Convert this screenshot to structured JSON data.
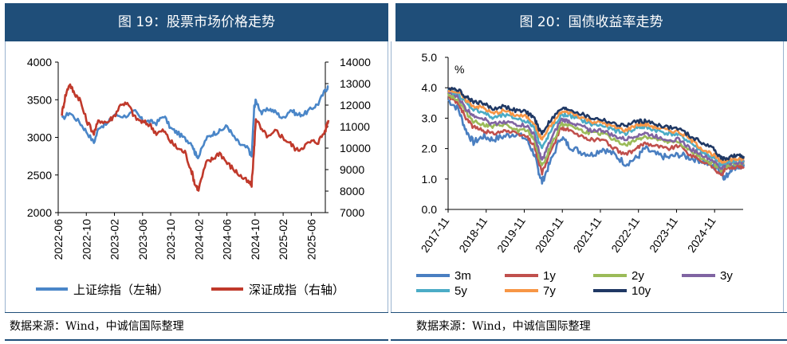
{
  "left_panel": {
    "title": "图 19：股票市场价格走势",
    "source": "数据来源：Wind，中诚信国际整理"
  },
  "right_panel": {
    "title": "图 20：国债收益率走势",
    "source": "数据来源：Wind，中诚信国际整理"
  },
  "colors": {
    "header_bg": "#1f4e79",
    "sh": "#4a86c8",
    "sz": "#c0392b",
    "3m": "#4a7fc1",
    "1y": "#c0504d",
    "2y": "#9bbb59",
    "3y": "#8064a2",
    "5y": "#4bacc6",
    "7y": "#f79646",
    "10y": "#1f3864"
  },
  "chart_data": [
    {
      "type": "line",
      "title": "图 19：股票市场价格走势",
      "x_ticks": [
        "2022-06",
        "2022-10",
        "2023-02",
        "2023-06",
        "2023-10",
        "2024-02",
        "2024-06",
        "2024-10",
        "2025-02",
        "2025-06"
      ],
      "x_range": [
        "2022-06",
        "2025-08"
      ],
      "y_left": {
        "ylim": [
          2000,
          4000
        ],
        "ticks": [
          2000,
          2500,
          3000,
          3500,
          4000
        ]
      },
      "y_right": {
        "ylim": [
          7000,
          14000
        ],
        "ticks": [
          7000,
          8000,
          9000,
          10000,
          11000,
          12000,
          13000,
          14000
        ]
      },
      "series": [
        {
          "name": "上证综指（左轴）",
          "axis": "left",
          "key": "sh",
          "x": [
            2022.46,
            2022.55,
            2022.67,
            2022.75,
            2022.84,
            2022.9,
            2023.0,
            2023.08,
            2023.2,
            2023.33,
            2023.42,
            2023.5,
            2023.58,
            2023.67,
            2023.75,
            2023.83,
            2023.92,
            2024.0,
            2024.04,
            2024.08,
            2024.17,
            2024.25,
            2024.33,
            2024.42,
            2024.5,
            2024.58,
            2024.67,
            2024.71,
            2024.74,
            2024.76,
            2024.83,
            2024.92,
            2025.0,
            2025.08,
            2025.17,
            2025.25,
            2025.33,
            2025.42,
            2025.5,
            2025.58,
            2025.62
          ],
          "values": [
            3240,
            3330,
            3200,
            3080,
            2930,
            3140,
            3180,
            3300,
            3280,
            3340,
            3220,
            3210,
            3190,
            3290,
            3120,
            3060,
            2980,
            2920,
            2790,
            2740,
            2980,
            3050,
            3080,
            3150,
            3000,
            2900,
            2850,
            2740,
            3400,
            3490,
            3320,
            3380,
            3330,
            3250,
            3370,
            3300,
            3310,
            3380,
            3450,
            3620,
            3680
          ]
        },
        {
          "name": "深证成指（右轴）",
          "axis": "right",
          "key": "sz",
          "x": [
            2022.46,
            2022.5,
            2022.55,
            2022.6,
            2022.67,
            2022.75,
            2022.84,
            2022.9,
            2023.0,
            2023.08,
            2023.17,
            2023.25,
            2023.33,
            2023.42,
            2023.5,
            2023.58,
            2023.67,
            2023.75,
            2023.83,
            2023.92,
            2024.0,
            2024.04,
            2024.08,
            2024.17,
            2024.25,
            2024.33,
            2024.42,
            2024.5,
            2024.58,
            2024.67,
            2024.71,
            2024.74,
            2024.76,
            2024.83,
            2024.92,
            2025.0,
            2025.08,
            2025.17,
            2025.25,
            2025.33,
            2025.42,
            2025.5,
            2025.58,
            2025.62
          ],
          "values": [
            11600,
            12400,
            13000,
            12600,
            12300,
            11300,
            10700,
            11300,
            11200,
            11500,
            12100,
            12000,
            11400,
            11200,
            11100,
            10700,
            10800,
            10300,
            10000,
            9800,
            8900,
            8300,
            8100,
            9300,
            9500,
            9800,
            9300,
            9000,
            8700,
            8400,
            8300,
            10000,
            11400,
            10800,
            10500,
            10800,
            10500,
            10200,
            9900,
            10100,
            10300,
            10300,
            10800,
            11300
          ]
        }
      ],
      "legend": [
        "上证综指（左轴）",
        "深证成指（右轴）"
      ]
    },
    {
      "type": "line",
      "title": "图 20：国债收益率走势",
      "ylabel": "%",
      "ylim": [
        0.0,
        5.0
      ],
      "y_ticks": [
        "0.0",
        "1.0",
        "2.0",
        "3.0",
        "4.0",
        "5.0"
      ],
      "x_ticks": [
        "2017-11",
        "2018-11",
        "2019-11",
        "2020-11",
        "2021-11",
        "2022-11",
        "2023-11",
        "2024-11"
      ],
      "x_range": [
        "2017-11",
        "2025-08"
      ],
      "x": [
        2017.83,
        2018.1,
        2018.3,
        2018.5,
        2018.75,
        2019.0,
        2019.3,
        2019.6,
        2019.9,
        2020.1,
        2020.2,
        2020.3,
        2020.5,
        2020.8,
        2021.0,
        2021.3,
        2021.6,
        2021.9,
        2022.2,
        2022.5,
        2022.8,
        2023.0,
        2023.3,
        2023.6,
        2023.9,
        2024.2,
        2024.5,
        2024.8,
        2025.0,
        2025.1,
        2025.3,
        2025.5,
        2025.6
      ],
      "series": [
        {
          "name": "3m",
          "key": "3m",
          "values": [
            3.6,
            3.3,
            2.6,
            2.2,
            2.4,
            2.3,
            2.4,
            2.5,
            2.3,
            1.8,
            1.3,
            0.9,
            1.5,
            2.4,
            2.1,
            1.9,
            1.8,
            2.0,
            1.8,
            1.5,
            1.7,
            2.0,
            1.8,
            1.7,
            1.8,
            1.7,
            1.6,
            1.4,
            1.3,
            1.0,
            1.4,
            1.4,
            1.4
          ]
        },
        {
          "name": "1y",
          "key": "1y",
          "values": [
            3.7,
            3.5,
            3.0,
            2.7,
            2.6,
            2.5,
            2.6,
            2.5,
            2.4,
            2.1,
            1.6,
            1.2,
            1.8,
            2.7,
            2.6,
            2.4,
            2.3,
            2.3,
            2.0,
            1.8,
            2.0,
            2.2,
            2.1,
            2.0,
            2.1,
            1.8,
            1.6,
            1.4,
            1.1,
            1.3,
            1.4,
            1.4,
            1.4
          ]
        },
        {
          "name": "2y",
          "key": "2y",
          "values": [
            3.8,
            3.6,
            3.2,
            2.9,
            2.8,
            2.7,
            2.8,
            2.6,
            2.6,
            2.3,
            1.8,
            1.4,
            2.0,
            2.8,
            2.8,
            2.6,
            2.5,
            2.5,
            2.3,
            2.1,
            2.3,
            2.4,
            2.3,
            2.2,
            2.2,
            1.9,
            1.7,
            1.5,
            1.3,
            1.4,
            1.5,
            1.5,
            1.5
          ]
        },
        {
          "name": "3y",
          "key": "3y",
          "values": [
            3.85,
            3.7,
            3.3,
            3.1,
            3.0,
            2.8,
            2.9,
            2.8,
            2.75,
            2.45,
            2.0,
            1.6,
            2.2,
            2.95,
            2.9,
            2.75,
            2.6,
            2.6,
            2.4,
            2.3,
            2.45,
            2.5,
            2.4,
            2.3,
            2.3,
            2.0,
            1.8,
            1.6,
            1.35,
            1.45,
            1.55,
            1.55,
            1.55
          ]
        },
        {
          "name": "5y",
          "key": "5y",
          "values": [
            3.9,
            3.8,
            3.5,
            3.3,
            3.2,
            3.0,
            3.1,
            3.0,
            2.9,
            2.7,
            2.3,
            2.0,
            2.5,
            3.1,
            3.1,
            2.95,
            2.8,
            2.75,
            2.6,
            2.5,
            2.7,
            2.7,
            2.6,
            2.5,
            2.45,
            2.2,
            1.9,
            1.7,
            1.45,
            1.55,
            1.6,
            1.6,
            1.6
          ]
        },
        {
          "name": "7y",
          "key": "7y",
          "values": [
            3.95,
            3.85,
            3.6,
            3.4,
            3.35,
            3.15,
            3.25,
            3.1,
            3.05,
            2.85,
            2.5,
            2.3,
            2.7,
            3.2,
            3.2,
            3.05,
            2.9,
            2.85,
            2.7,
            2.6,
            2.8,
            2.8,
            2.7,
            2.6,
            2.55,
            2.3,
            2.0,
            1.8,
            1.55,
            1.6,
            1.65,
            1.65,
            1.65
          ]
        },
        {
          "name": "10y",
          "key": "10y",
          "values": [
            4.0,
            3.95,
            3.7,
            3.55,
            3.5,
            3.3,
            3.4,
            3.25,
            3.2,
            3.0,
            2.7,
            2.5,
            2.9,
            3.3,
            3.3,
            3.15,
            3.0,
            2.95,
            2.8,
            2.75,
            2.9,
            2.9,
            2.8,
            2.7,
            2.65,
            2.4,
            2.2,
            2.0,
            1.7,
            1.65,
            1.75,
            1.75,
            1.75
          ]
        }
      ],
      "legend": [
        "3m",
        "1y",
        "2y",
        "3y",
        "5y",
        "7y",
        "10y"
      ]
    }
  ]
}
